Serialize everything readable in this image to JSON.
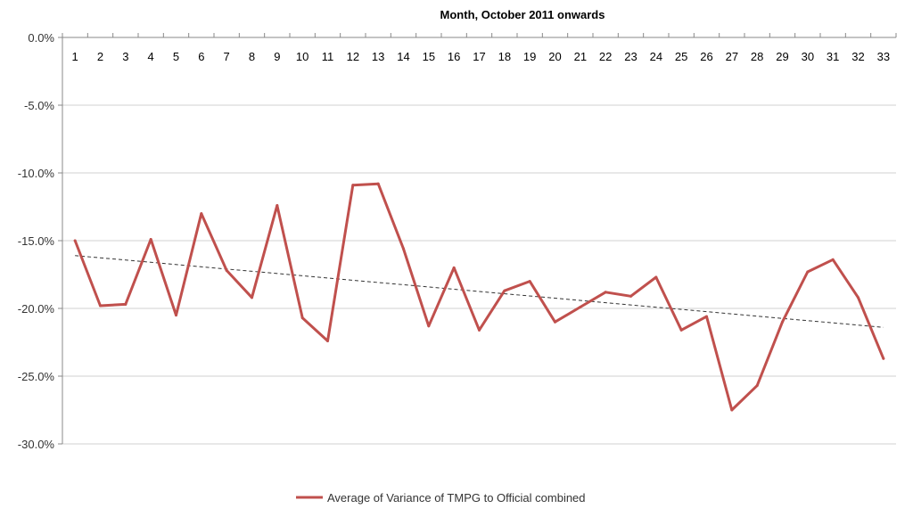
{
  "chart_data": {
    "type": "line",
    "title": "Month, October 2011 onwards",
    "xlabel": "",
    "ylabel": "",
    "x": [
      1,
      2,
      3,
      4,
      5,
      6,
      7,
      8,
      9,
      10,
      11,
      12,
      13,
      14,
      15,
      16,
      17,
      18,
      19,
      20,
      21,
      22,
      23,
      24,
      25,
      26,
      27,
      28,
      29,
      30,
      31,
      32,
      33
    ],
    "ylim": [
      -30,
      0
    ],
    "yticks": [
      "0.0%",
      "-5.0%",
      "-10.0%",
      "-15.0%",
      "-20.0%",
      "-25.0%",
      "-30.0%"
    ],
    "ytick_values": [
      0,
      -5,
      -10,
      -15,
      -20,
      -25,
      -30
    ],
    "grid": true,
    "legend_position": "bottom",
    "series": [
      {
        "name": "Average of Variance of TMPG to Official combined",
        "color": "#c0504d",
        "values": [
          -15.0,
          -19.8,
          -19.7,
          -14.9,
          -20.5,
          -13.0,
          -17.2,
          -19.2,
          -12.4,
          -20.7,
          -22.4,
          -10.9,
          -10.8,
          -15.6,
          -21.3,
          -17.0,
          -21.6,
          -18.7,
          -18.0,
          -21.0,
          -19.9,
          -18.8,
          -19.1,
          -17.7,
          -21.6,
          -20.6,
          -27.5,
          -25.7,
          -21.0,
          -17.3,
          -16.4,
          -19.2,
          -23.7
        ]
      }
    ],
    "trendline": {
      "style": "dashed",
      "color": "#333333",
      "start": -16.1,
      "end": -21.4
    }
  }
}
